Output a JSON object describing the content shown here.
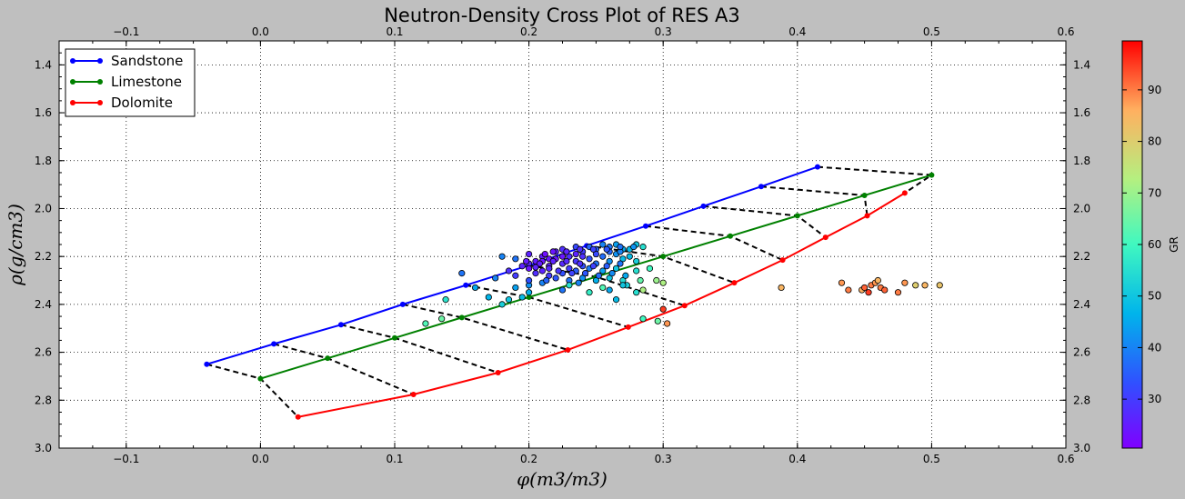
{
  "chart_data": {
    "type": "scatter",
    "title": "Neutron-Density Cross Plot of RES A3",
    "xlabel": "φ(m3/m3)",
    "ylabel": "ρ(g/cm3)",
    "xlim": [
      -0.15,
      0.6
    ],
    "ylim": [
      3.0,
      1.3
    ],
    "x_ticks": [
      "−0.1",
      "0.0",
      "0.1",
      "0.2",
      "0.3",
      "0.4",
      "0.5",
      "0.6"
    ],
    "x_tick_values": [
      -0.1,
      0.0,
      0.1,
      0.2,
      0.3,
      0.4,
      0.5,
      0.6
    ],
    "y_ticks": [
      "1.4",
      "1.6",
      "1.8",
      "2.0",
      "2.2",
      "2.4",
      "2.6",
      "2.8",
      "3.0"
    ],
    "y_tick_values": [
      1.4,
      1.6,
      1.8,
      2.0,
      2.2,
      2.4,
      2.6,
      2.8,
      3.0
    ],
    "grid": true,
    "legend_position": "top-left",
    "series": [
      {
        "name": "Sandstone",
        "color": "#0000ff",
        "x": [
          -0.04,
          0.01,
          0.06,
          0.106,
          0.153,
          0.2,
          0.243,
          0.287,
          0.33,
          0.373,
          0.415
        ],
        "y": [
          2.65,
          2.565,
          2.485,
          2.4,
          2.32,
          2.237,
          2.155,
          2.073,
          1.99,
          1.908,
          1.826
        ]
      },
      {
        "name": "Limestone",
        "color": "#008000",
        "x": [
          0.0,
          0.05,
          0.1,
          0.15,
          0.2,
          0.25,
          0.3,
          0.35,
          0.4,
          0.45,
          0.5
        ],
        "y": [
          2.71,
          2.625,
          2.54,
          2.455,
          2.37,
          2.285,
          2.2,
          2.115,
          2.03,
          1.945,
          1.86
        ]
      },
      {
        "name": "Dolomite",
        "color": "#ff0000",
        "x": [
          0.028,
          0.114,
          0.177,
          0.229,
          0.274,
          0.316,
          0.353,
          0.389,
          0.421,
          0.452,
          0.48
        ],
        "y": [
          2.87,
          2.776,
          2.685,
          2.59,
          2.495,
          2.405,
          2.31,
          2.215,
          2.12,
          2.03,
          1.935
        ]
      }
    ],
    "scatter_points": [
      [
        0.19,
        2.21,
        38
      ],
      [
        0.18,
        2.2,
        40
      ],
      [
        0.2,
        2.19,
        26
      ],
      [
        0.21,
        2.2,
        25
      ],
      [
        0.22,
        2.21,
        24
      ],
      [
        0.23,
        2.2,
        28
      ],
      [
        0.24,
        2.18,
        30
      ],
      [
        0.25,
        2.17,
        35
      ],
      [
        0.26,
        2.16,
        38
      ],
      [
        0.27,
        2.17,
        45
      ],
      [
        0.28,
        2.15,
        50
      ],
      [
        0.285,
        2.16,
        55
      ],
      [
        0.2,
        2.23,
        27
      ],
      [
        0.21,
        2.22,
        24
      ],
      [
        0.22,
        2.18,
        26
      ],
      [
        0.225,
        2.17,
        28
      ],
      [
        0.235,
        2.16,
        32
      ],
      [
        0.245,
        2.16,
        36
      ],
      [
        0.255,
        2.15,
        40
      ],
      [
        0.265,
        2.15,
        44
      ],
      [
        0.275,
        2.17,
        48
      ],
      [
        0.215,
        2.24,
        26
      ],
      [
        0.225,
        2.23,
        27
      ],
      [
        0.235,
        2.22,
        29
      ],
      [
        0.245,
        2.21,
        33
      ],
      [
        0.255,
        2.2,
        37
      ],
      [
        0.265,
        2.19,
        42
      ],
      [
        0.275,
        2.2,
        48
      ],
      [
        0.23,
        2.25,
        30
      ],
      [
        0.24,
        2.24,
        33
      ],
      [
        0.25,
        2.23,
        38
      ],
      [
        0.26,
        2.22,
        42
      ],
      [
        0.27,
        2.21,
        48
      ],
      [
        0.28,
        2.22,
        52
      ],
      [
        0.2,
        2.25,
        24
      ],
      [
        0.21,
        2.26,
        26
      ],
      [
        0.205,
        2.27,
        28
      ],
      [
        0.215,
        2.28,
        30
      ],
      [
        0.225,
        2.27,
        33
      ],
      [
        0.235,
        2.26,
        35
      ],
      [
        0.245,
        2.25,
        39
      ],
      [
        0.255,
        2.26,
        44
      ],
      [
        0.265,
        2.25,
        50
      ],
      [
        0.28,
        2.26,
        55
      ],
      [
        0.29,
        2.25,
        60
      ],
      [
        0.22,
        2.29,
        34
      ],
      [
        0.23,
        2.3,
        38
      ],
      [
        0.24,
        2.29,
        42
      ],
      [
        0.25,
        2.3,
        46
      ],
      [
        0.26,
        2.29,
        50
      ],
      [
        0.27,
        2.3,
        54
      ],
      [
        0.283,
        2.3,
        64
      ],
      [
        0.295,
        2.3,
        70
      ],
      [
        0.3,
        2.31,
        72
      ],
      [
        0.21,
        2.31,
        40
      ],
      [
        0.2,
        2.32,
        42
      ],
      [
        0.19,
        2.33,
        44
      ],
      [
        0.2,
        2.35,
        46
      ],
      [
        0.195,
        2.37,
        48
      ],
      [
        0.185,
        2.38,
        50
      ],
      [
        0.18,
        2.4,
        52
      ],
      [
        0.17,
        2.37,
        47
      ],
      [
        0.16,
        2.33,
        45
      ],
      [
        0.175,
        2.29,
        40
      ],
      [
        0.15,
        2.27,
        38
      ],
      [
        0.138,
        2.38,
        56
      ],
      [
        0.123,
        2.48,
        62
      ],
      [
        0.135,
        2.46,
        65
      ],
      [
        0.23,
        2.32,
        55
      ],
      [
        0.245,
        2.35,
        58
      ],
      [
        0.255,
        2.33,
        62
      ],
      [
        0.265,
        2.38,
        48
      ],
      [
        0.273,
        2.32,
        52
      ],
      [
        0.28,
        2.35,
        55
      ],
      [
        0.285,
        2.34,
        72
      ],
      [
        0.285,
        2.46,
        60
      ],
      [
        0.296,
        2.47,
        65
      ],
      [
        0.3,
        2.42,
        95
      ],
      [
        0.303,
        2.48,
        88
      ],
      [
        0.27,
        2.32,
        50
      ],
      [
        0.26,
        2.34,
        45
      ],
      [
        0.237,
        2.31,
        40
      ],
      [
        0.225,
        2.34,
        38
      ],
      [
        0.213,
        2.3,
        36
      ],
      [
        0.2,
        2.3,
        33
      ],
      [
        0.19,
        2.28,
        30
      ],
      [
        0.185,
        2.26,
        28
      ],
      [
        0.195,
        2.24,
        26
      ],
      [
        0.205,
        2.22,
        25
      ],
      [
        0.215,
        2.21,
        24
      ],
      [
        0.225,
        2.2,
        24
      ],
      [
        0.235,
        2.19,
        26
      ],
      [
        0.24,
        2.2,
        28
      ],
      [
        0.25,
        2.19,
        32
      ],
      [
        0.26,
        2.18,
        36
      ],
      [
        0.268,
        2.18,
        40
      ],
      [
        0.212,
        2.19,
        23
      ],
      [
        0.218,
        2.18,
        24
      ],
      [
        0.228,
        2.18,
        26
      ],
      [
        0.238,
        2.17,
        28
      ],
      [
        0.248,
        2.17,
        31
      ],
      [
        0.258,
        2.17,
        34
      ],
      [
        0.268,
        2.16,
        38
      ],
      [
        0.278,
        2.16,
        42
      ],
      [
        0.198,
        2.22,
        25
      ],
      [
        0.208,
        2.23,
        25
      ],
      [
        0.218,
        2.22,
        26
      ],
      [
        0.228,
        2.22,
        27
      ],
      [
        0.238,
        2.23,
        28
      ],
      [
        0.248,
        2.24,
        31
      ],
      [
        0.258,
        2.24,
        35
      ],
      [
        0.268,
        2.23,
        38
      ],
      [
        0.205,
        2.245,
        26
      ],
      [
        0.215,
        2.25,
        27
      ],
      [
        0.222,
        2.26,
        29
      ],
      [
        0.232,
        2.27,
        31
      ],
      [
        0.242,
        2.27,
        34
      ],
      [
        0.252,
        2.28,
        37
      ],
      [
        0.262,
        2.27,
        41
      ],
      [
        0.272,
        2.28,
        45
      ],
      [
        0.388,
        2.33,
        85
      ],
      [
        0.433,
        2.31,
        88
      ],
      [
        0.438,
        2.34,
        90
      ],
      [
        0.448,
        2.34,
        86
      ],
      [
        0.45,
        2.33,
        92
      ],
      [
        0.455,
        2.32,
        90
      ],
      [
        0.453,
        2.35,
        95
      ],
      [
        0.458,
        2.31,
        88
      ],
      [
        0.46,
        2.3,
        85
      ],
      [
        0.462,
        2.33,
        90
      ],
      [
        0.465,
        2.34,
        92
      ],
      [
        0.475,
        2.35,
        90
      ],
      [
        0.48,
        2.31,
        88
      ],
      [
        0.488,
        2.32,
        80
      ],
      [
        0.495,
        2.32,
        85
      ],
      [
        0.506,
        2.32,
        82
      ]
    ]
  },
  "colorbar": {
    "label": "GR",
    "ticks": [
      "30",
      "40",
      "50",
      "60",
      "70",
      "80",
      "90"
    ],
    "tick_values": [
      30,
      40,
      50,
      60,
      70,
      80,
      90
    ],
    "range": [
      20.5,
      99.5
    ]
  }
}
